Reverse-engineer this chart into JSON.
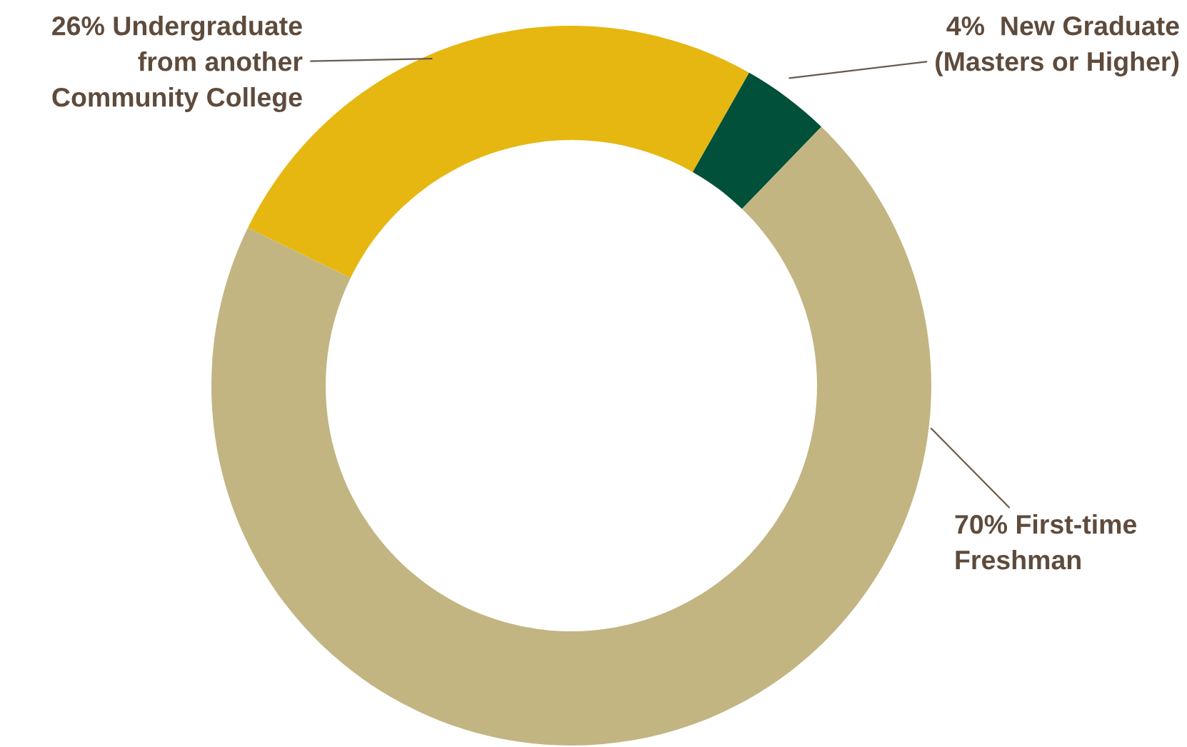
{
  "chart_data": {
    "type": "donut",
    "categories": [
      "26% Undergraduate\nfrom another\nCommunity College",
      "4%  New Graduate\n(Masters or Higher)",
      "70% First-time\nFreshman"
    ],
    "values": [
      26,
      4,
      70
    ],
    "colors": [
      "#e6b711",
      "#00503a",
      "#c2b582"
    ]
  }
}
